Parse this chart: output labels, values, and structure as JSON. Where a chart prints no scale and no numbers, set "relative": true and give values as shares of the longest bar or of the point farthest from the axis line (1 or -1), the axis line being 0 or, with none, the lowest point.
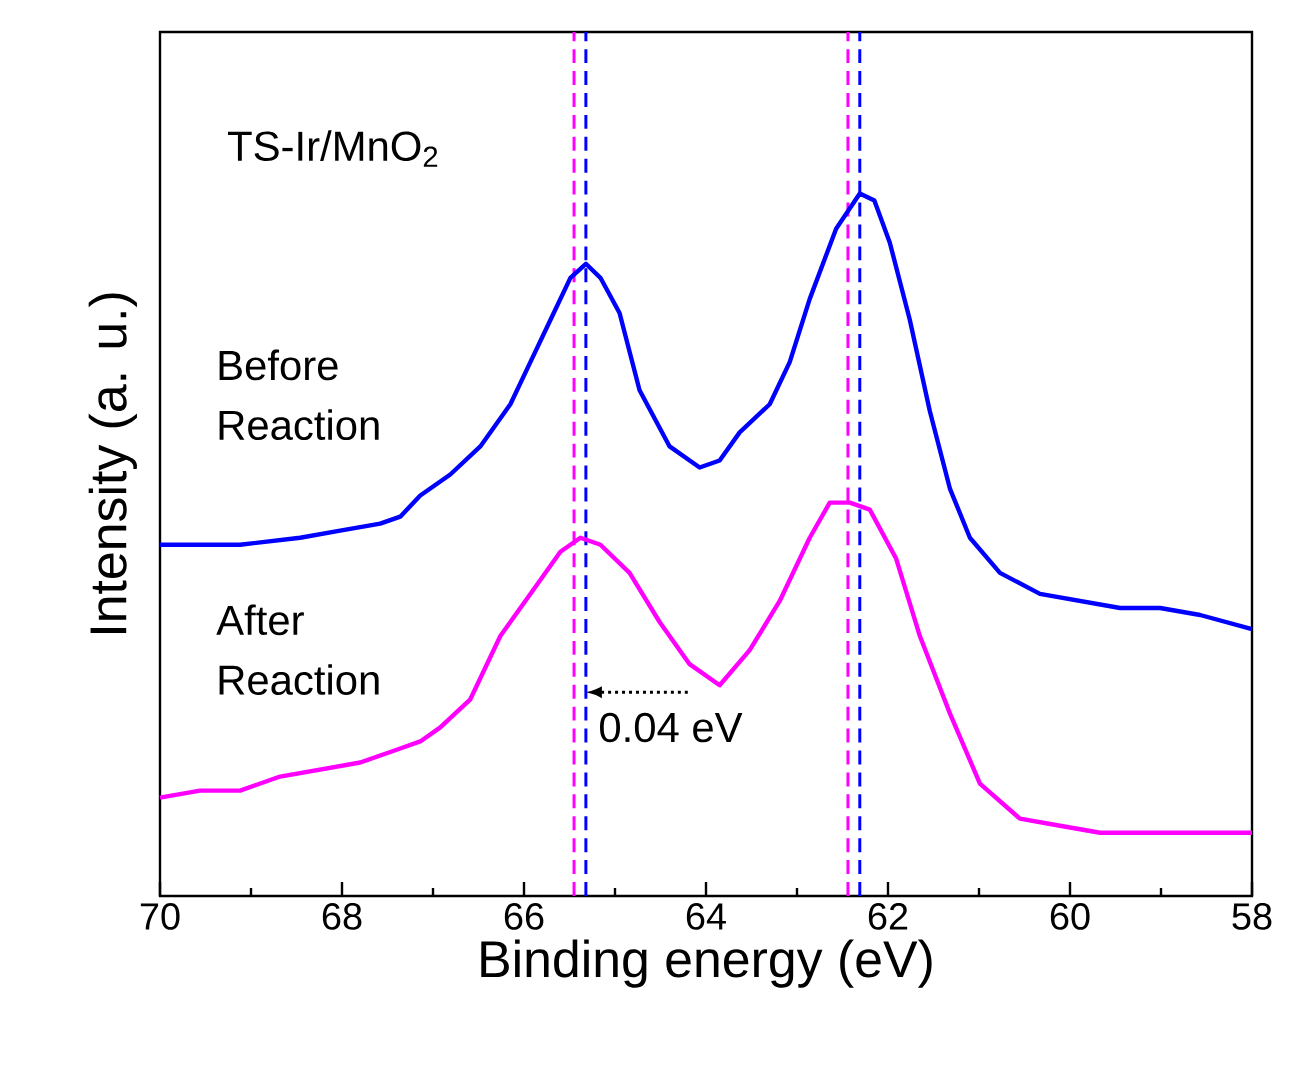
{
  "chart_data": {
    "type": "line",
    "title": "TS-Ir/MnO$_{2}$",
    "xlabel": "Binding energy (eV)",
    "ylabel": "Intensity (a. u.)",
    "relative": true,
    "xlim": [
      70,
      58
    ],
    "xticks": [
      70,
      68,
      66,
      64,
      62,
      60,
      58
    ],
    "legend": false,
    "grid": false,
    "marker": "none",
    "line_style": "solid",
    "series": [
      {
        "name": "Before Reaction",
        "color": "#0000ff",
        "x": [
          70,
          69.56,
          69.12,
          68.46,
          68.02,
          67.58,
          67.36,
          67.14,
          66.81,
          66.48,
          66.15,
          65.93,
          65.71,
          65.49,
          65.32,
          65.16,
          64.95,
          64.73,
          64.4,
          64.07,
          63.85,
          63.63,
          63.3,
          63.08,
          62.86,
          62.57,
          62.31,
          62.15,
          61.98,
          61.76,
          61.54,
          61.32,
          61.1,
          60.77,
          60.33,
          59.89,
          59.45,
          59.01,
          58.57,
          58
        ],
        "values": [
          0.5,
          0.5,
          0.5,
          0.51,
          0.52,
          0.53,
          0.54,
          0.57,
          0.6,
          0.64,
          0.7,
          0.76,
          0.82,
          0.88,
          0.9,
          0.88,
          0.83,
          0.72,
          0.64,
          0.61,
          0.62,
          0.66,
          0.7,
          0.76,
          0.85,
          0.95,
          1.0,
          0.99,
          0.93,
          0.82,
          0.69,
          0.58,
          0.51,
          0.46,
          0.43,
          0.42,
          0.41,
          0.41,
          0.4,
          0.38
        ]
      },
      {
        "name": "After Reaction",
        "color": "#ff00ff",
        "x": [
          70,
          69.56,
          69.12,
          68.68,
          68.24,
          67.8,
          67.36,
          67.14,
          66.92,
          66.59,
          66.26,
          65.93,
          65.6,
          65.38,
          65.16,
          64.84,
          64.51,
          64.18,
          63.85,
          63.52,
          63.19,
          62.86,
          62.64,
          62.42,
          62.2,
          61.91,
          61.65,
          61.32,
          60.99,
          60.55,
          60.11,
          59.67,
          59.23,
          58.79,
          58.35,
          58
        ],
        "values": [
          0.14,
          0.15,
          0.15,
          0.17,
          0.18,
          0.19,
          0.21,
          0.22,
          0.24,
          0.28,
          0.37,
          0.43,
          0.49,
          0.51,
          0.5,
          0.46,
          0.39,
          0.33,
          0.3,
          0.35,
          0.42,
          0.51,
          0.56,
          0.56,
          0.55,
          0.48,
          0.37,
          0.26,
          0.16,
          0.11,
          0.1,
          0.09,
          0.09,
          0.09,
          0.09,
          0.09
        ]
      }
    ],
    "ref_lines": [
      {
        "axis": "x",
        "value": 65.32,
        "color": "#0000ff",
        "line_style": "dashed"
      },
      {
        "axis": "x",
        "value": 62.31,
        "color": "#0000ff",
        "line_style": "dashed"
      },
      {
        "axis": "x",
        "value": 65.45,
        "color": "#ff00ff",
        "line_style": "dashed"
      },
      {
        "axis": "x",
        "value": 62.44,
        "color": "#ff00ff",
        "line_style": "dashed"
      }
    ],
    "annotations": [
      "0.04 eV"
    ]
  }
}
